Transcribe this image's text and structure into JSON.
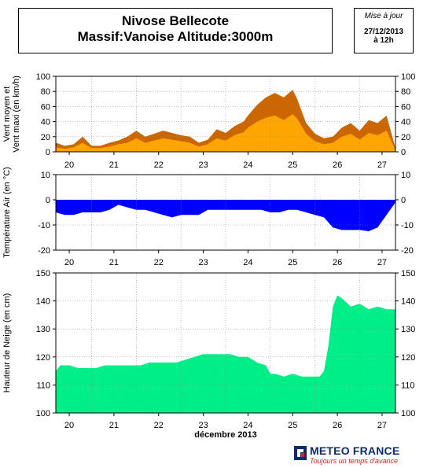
{
  "header": {
    "station": "Nivose Bellecote",
    "massif_line": "Massif:Vanoise Altitude:3000m"
  },
  "update": {
    "label": "Mise à jour",
    "date": "27/12/2013",
    "time": "à 12h"
  },
  "brand": {
    "name": "METEO FRANCE",
    "slogan": "Toujours un temps d'avance"
  },
  "colors": {
    "wind_mean": "#FFA500",
    "wind_max": "#CC6600",
    "temperature": "#0000FF",
    "snow": "#00EE88"
  },
  "chart_data": [
    {
      "type": "area",
      "ylabel": "Vent moyen et\nVent maxi (en km/h)",
      "ylim": [
        0,
        100
      ],
      "yticks": [
        0,
        20,
        40,
        60,
        80,
        100
      ],
      "xlim": [
        19.7,
        27.3
      ],
      "xticks": [
        "20",
        "21",
        "22",
        "23",
        "24",
        "25",
        "26",
        "27"
      ],
      "grid": true,
      "series": [
        {
          "key": "wind_max",
          "x": [
            19.7,
            19.9,
            20.1,
            20.3,
            20.5,
            20.7,
            20.9,
            21.1,
            21.3,
            21.5,
            21.7,
            21.9,
            22.1,
            22.3,
            22.5,
            22.7,
            22.9,
            23.1,
            23.3,
            23.5,
            23.7,
            23.9,
            24.0,
            24.2,
            24.4,
            24.6,
            24.8,
            25.0,
            25.1,
            25.3,
            25.5,
            25.7,
            25.9,
            26.1,
            26.3,
            26.5,
            26.7,
            26.9,
            27.1,
            27.3
          ],
          "y": [
            12,
            8,
            10,
            20,
            8,
            8,
            12,
            15,
            20,
            28,
            20,
            24,
            28,
            25,
            22,
            20,
            12,
            16,
            30,
            25,
            34,
            40,
            48,
            62,
            72,
            78,
            72,
            82,
            70,
            38,
            24,
            18,
            20,
            32,
            38,
            28,
            42,
            38,
            48,
            5
          ]
        },
        {
          "key": "wind_mean",
          "x": [
            19.7,
            19.9,
            20.1,
            20.3,
            20.5,
            20.7,
            20.9,
            21.1,
            21.3,
            21.5,
            21.7,
            21.9,
            22.1,
            22.3,
            22.5,
            22.7,
            22.9,
            23.1,
            23.3,
            23.5,
            23.7,
            23.9,
            24.0,
            24.2,
            24.4,
            24.6,
            24.8,
            25.0,
            25.1,
            25.3,
            25.5,
            25.7,
            25.9,
            26.1,
            26.3,
            26.5,
            26.7,
            26.9,
            27.1,
            27.3
          ],
          "y": [
            6,
            4,
            6,
            12,
            5,
            5,
            7,
            10,
            12,
            18,
            12,
            15,
            18,
            16,
            14,
            12,
            7,
            10,
            18,
            15,
            22,
            26,
            32,
            40,
            45,
            48,
            42,
            50,
            44,
            24,
            14,
            10,
            12,
            20,
            24,
            16,
            25,
            22,
            28,
            2
          ]
        }
      ]
    },
    {
      "type": "area",
      "ylabel": "Température Air (en °C)",
      "ylim": [
        -20,
        10
      ],
      "yticks": [
        -20,
        -10,
        0,
        10
      ],
      "xlim": [
        19.7,
        27.3
      ],
      "xticks": [
        "20",
        "21",
        "22",
        "23",
        "24",
        "25",
        "26",
        "27"
      ],
      "grid": true,
      "series": [
        {
          "key": "temperature",
          "x": [
            19.7,
            19.9,
            20.1,
            20.3,
            20.5,
            20.7,
            20.9,
            21.1,
            21.3,
            21.5,
            21.7,
            21.9,
            22.1,
            22.3,
            22.5,
            22.7,
            22.9,
            23.1,
            23.3,
            23.5,
            23.7,
            23.9,
            24.1,
            24.3,
            24.5,
            24.7,
            24.9,
            25.1,
            25.3,
            25.5,
            25.7,
            25.9,
            26.1,
            26.3,
            26.5,
            26.7,
            26.9,
            27.1,
            27.3
          ],
          "y": [
            -5,
            -6,
            -6,
            -5,
            -5,
            -5,
            -4,
            -2,
            -3,
            -4,
            -4,
            -5,
            -6,
            -7,
            -6,
            -6,
            -6,
            -4,
            -4,
            -4,
            -4,
            -4,
            -4,
            -4,
            -5,
            -5,
            -4,
            -4,
            -5,
            -6,
            -7,
            -11,
            -12,
            -12,
            -12,
            -12.5,
            -11,
            -6,
            -1
          ]
        }
      ]
    },
    {
      "type": "area",
      "ylabel": "Hauteur de Neige (en cm)",
      "xlabel": "décembre 2013",
      "ylim": [
        100,
        150
      ],
      "yticks": [
        100,
        110,
        120,
        130,
        140,
        150
      ],
      "xlim": [
        19.7,
        27.3
      ],
      "xticks": [
        "20",
        "21",
        "22",
        "23",
        "24",
        "25",
        "26",
        "27"
      ],
      "grid": true,
      "series": [
        {
          "key": "snow",
          "x": [
            19.7,
            19.8,
            20.0,
            20.2,
            20.4,
            20.6,
            20.8,
            21.0,
            21.2,
            21.4,
            21.6,
            21.8,
            22.0,
            22.2,
            22.4,
            22.6,
            22.8,
            23.0,
            23.2,
            23.4,
            23.6,
            23.8,
            24.0,
            24.2,
            24.4,
            24.5,
            24.6,
            24.8,
            25.0,
            25.2,
            25.4,
            25.6,
            25.7,
            25.8,
            25.9,
            26.0,
            26.1,
            26.3,
            26.5,
            26.7,
            26.9,
            27.1,
            27.3
          ],
          "y": [
            115,
            117,
            117,
            116,
            116,
            116,
            117,
            117,
            117,
            117,
            117,
            118,
            118,
            118,
            118,
            119,
            120,
            121,
            121,
            121,
            121,
            120,
            120,
            118,
            117,
            114,
            114,
            113,
            114,
            113,
            113,
            113,
            115,
            124,
            138,
            142,
            141,
            138,
            139,
            137,
            138,
            137,
            137
          ]
        }
      ]
    }
  ]
}
